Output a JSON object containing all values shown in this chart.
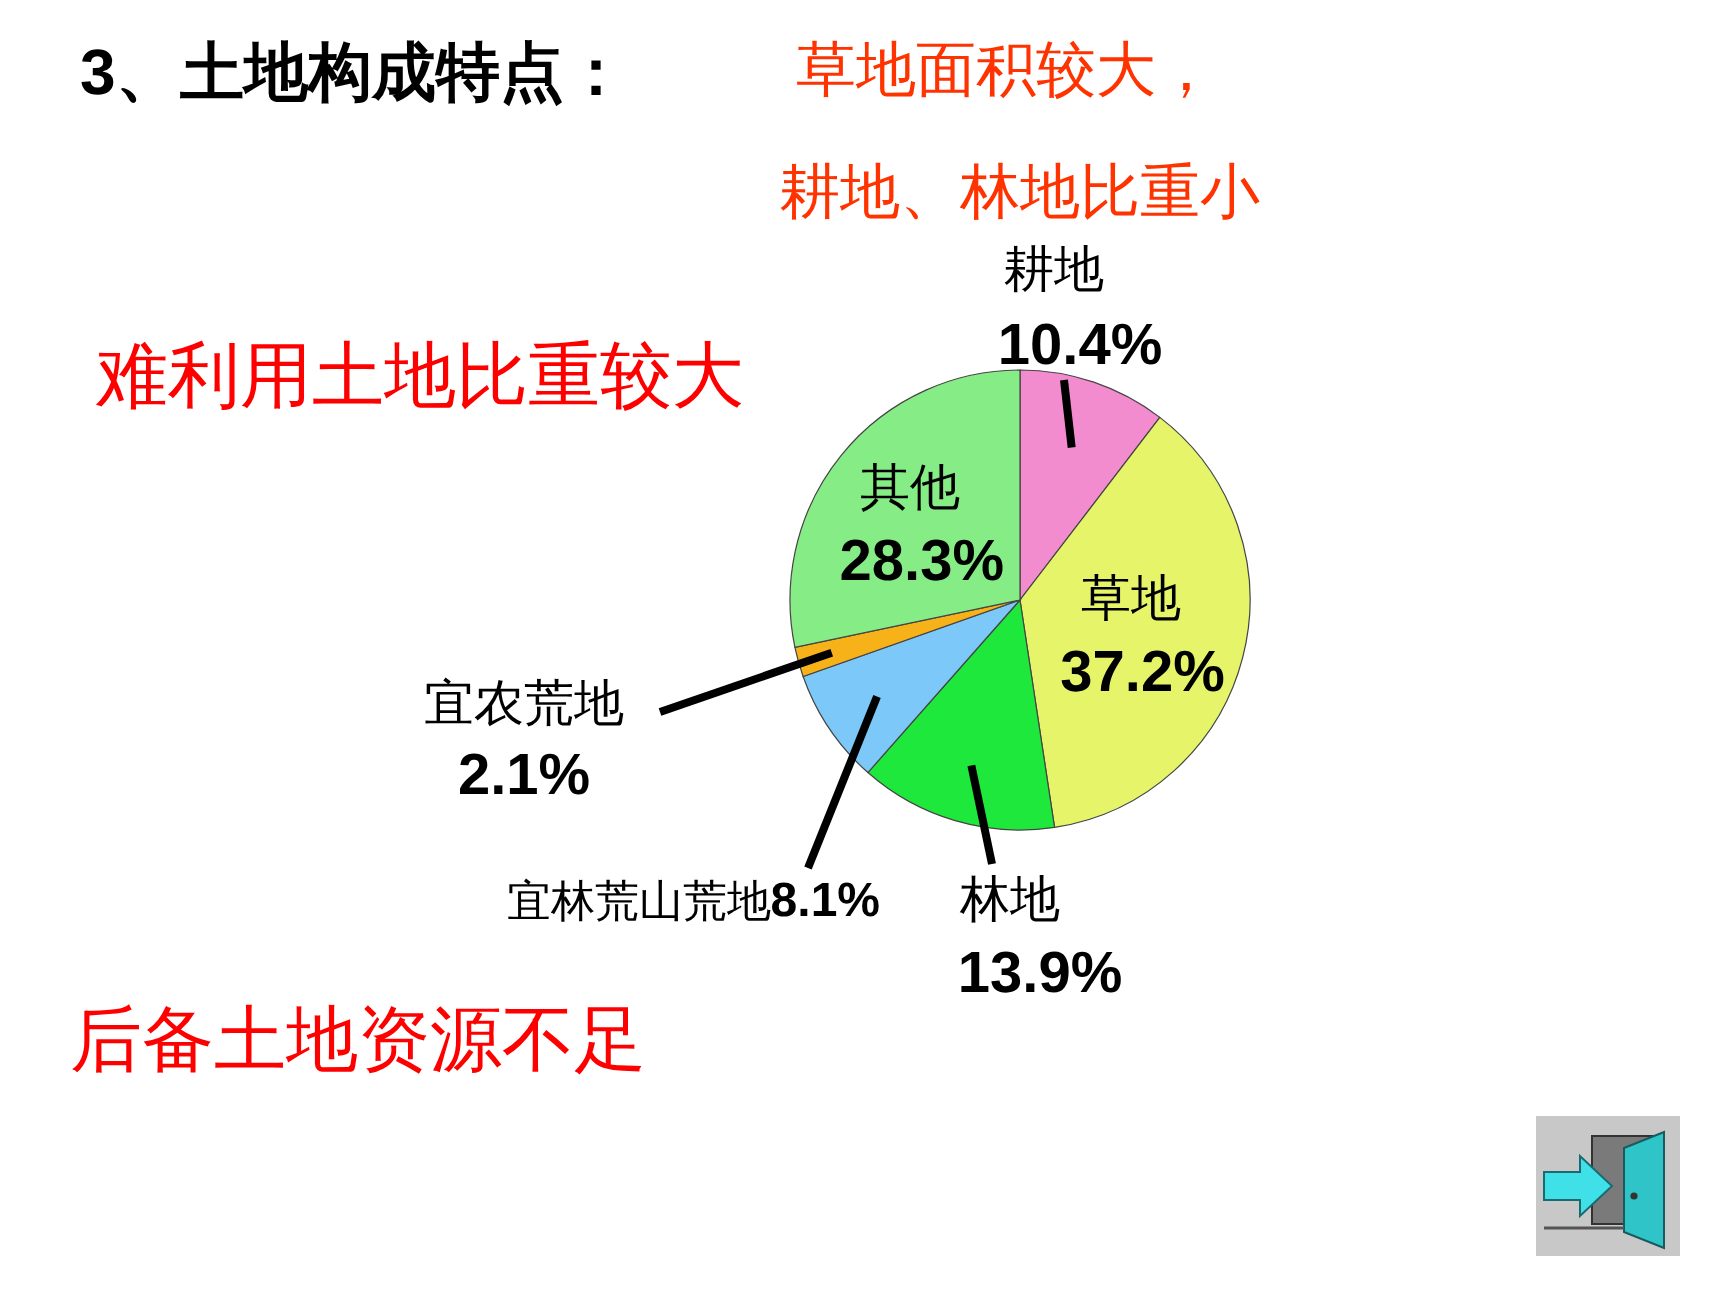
{
  "chart_data": {
    "type": "pie",
    "title": "3、土地构成特点：",
    "categories": [
      "耕地",
      "草地",
      "林地",
      "宜林荒山荒地",
      "宜农荒地",
      "其他"
    ],
    "values": [
      10.4,
      37.2,
      13.9,
      8.1,
      2.1,
      28.3
    ],
    "value_labels": [
      "10.4%",
      "37.2%",
      "13.9%",
      "8.1%",
      "2.1%",
      "28.3%"
    ],
    "colors": [
      "#f28cce",
      "#e6f46a",
      "#1ee83c",
      "#7cc8f8",
      "#f7b21a",
      "#86ec86"
    ],
    "annotations": [
      "草地面积较大，",
      "耕地、林地比重小",
      "难利用土地比重较大",
      "后备土地资源不足"
    ]
  }
}
